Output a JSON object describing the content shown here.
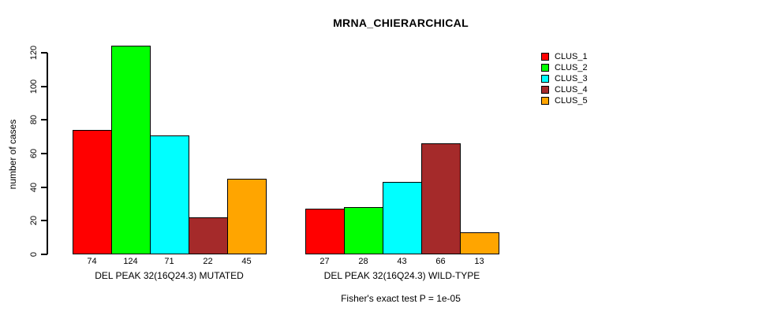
{
  "chart_data": {
    "type": "bar",
    "title": "MRNA_CHIERARCHICAL",
    "ylabel": "number of cases",
    "annotation": "Fisher's exact test P = 1e-05",
    "ylim": [
      0,
      128
    ],
    "yticks": [
      0,
      20,
      40,
      60,
      80,
      100,
      120
    ],
    "grid": false,
    "legend_position": "right-inside",
    "series": [
      {
        "name": "CLUS_1",
        "color": "#ff0000",
        "values": [
          74,
          27
        ]
      },
      {
        "name": "CLUS_2",
        "color": "#00ff00",
        "values": [
          124,
          28
        ]
      },
      {
        "name": "CLUS_3",
        "color": "#00ffff",
        "values": [
          71,
          43
        ]
      },
      {
        "name": "CLUS_4",
        "color": "#a52a2a",
        "values": [
          22,
          66
        ]
      },
      {
        "name": "CLUS_5",
        "color": "#ffa500",
        "values": [
          45,
          13
        ]
      }
    ],
    "groups": [
      {
        "label": "DEL PEAK 32(16Q24.3) MUTATED",
        "values": [
          74,
          124,
          71,
          22,
          45
        ]
      },
      {
        "label": "DEL PEAK 32(16Q24.3) WILD-TYPE",
        "values": [
          27,
          28,
          43,
          66,
          13
        ]
      }
    ]
  }
}
